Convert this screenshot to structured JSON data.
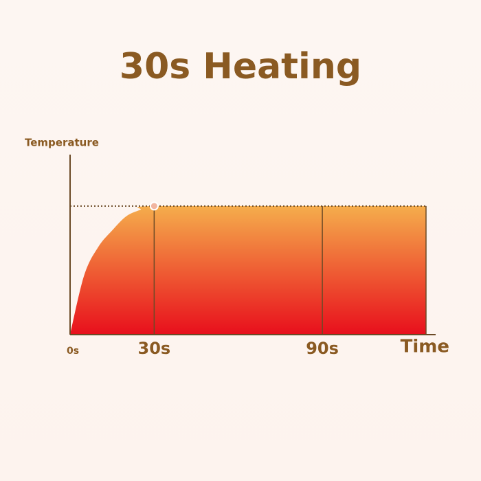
{
  "chart_data": {
    "type": "area",
    "title": "30s Heating",
    "y_label": "Temperature",
    "x_label": "Time",
    "x": [
      0,
      5,
      10,
      15,
      20,
      25,
      30,
      90,
      127
    ],
    "values": [
      0,
      46,
      68,
      81,
      92,
      97,
      100,
      100,
      100
    ],
    "xlim": [
      0,
      127
    ],
    "ylim": [
      0,
      140
    ],
    "xticks": [
      {
        "value": 0,
        "label": "0s"
      },
      {
        "value": 30,
        "label": "30s"
      },
      {
        "value": 90,
        "label": "90s"
      }
    ],
    "color_top": "#f5ad4c",
    "color_bottom": "#e80f1c"
  }
}
